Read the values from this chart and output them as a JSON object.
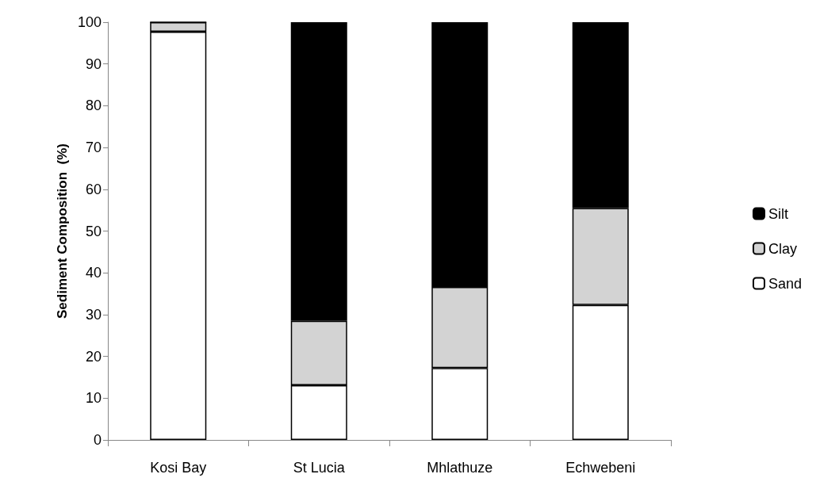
{
  "chart_data": {
    "type": "bar",
    "stacked": true,
    "ylabel": "Sediment Composition  (%)",
    "categories": [
      "Kosi Bay",
      "St Lucia",
      "Mhlathuze",
      "Echwebeni"
    ],
    "series": [
      {
        "name": "Sand",
        "color": "#ffffff",
        "values": [
          97.7,
          13.1,
          17.2,
          32.3
        ]
      },
      {
        "name": "Clay",
        "color": "#d3d3d3",
        "values": [
          2.3,
          15.4,
          19.4,
          23.2
        ]
      },
      {
        "name": "Silt",
        "color": "#000000",
        "values": [
          0,
          71.5,
          63.4,
          44.5
        ]
      }
    ],
    "ylim": [
      0,
      100
    ],
    "yticks": [
      0,
      10,
      20,
      30,
      40,
      50,
      60,
      70,
      80,
      90,
      100
    ],
    "grid": false,
    "legend": "right"
  }
}
